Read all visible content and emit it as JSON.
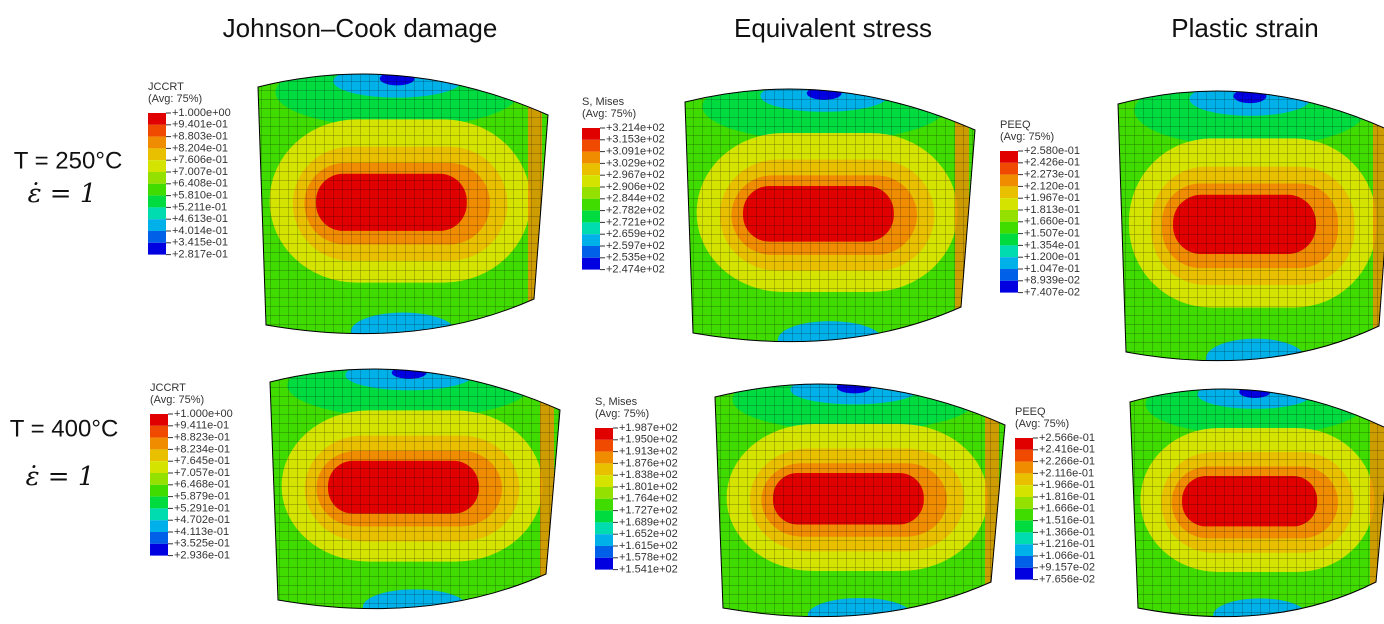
{
  "titles": [
    "Johnson–Cook damage",
    "Equivalent stress",
    "Plastic strain"
  ],
  "rows": [
    {
      "temperature": "T = 250°C",
      "strain_rate": "ε̇ = 1"
    },
    {
      "temperature": "T = 400°C",
      "strain_rate": "ε̇ = 1"
    }
  ],
  "palette": [
    "#e00000",
    "#f04a00",
    "#f08c00",
    "#e8c000",
    "#d4e400",
    "#94e000",
    "#40dc00",
    "#00dc40",
    "#00dcb0",
    "#00b0e8",
    "#0060e8",
    "#0000e0"
  ],
  "legends": [
    {
      "variable": "JCCRT",
      "average": "(Avg: 75%)",
      "values": [
        "+1.000e+00",
        "+9.401e-01",
        "+8.803e-01",
        "+8.204e-01",
        "+7.606e-01",
        "+7.007e-01",
        "+6.408e-01",
        "+5.810e-01",
        "+5.211e-01",
        "+4.613e-01",
        "+4.014e-01",
        "+3.415e-01",
        "+2.817e-01"
      ]
    },
    {
      "variable": "S, Mises",
      "average": "(Avg: 75%)",
      "values": [
        "+3.214e+02",
        "+3.153e+02",
        "+3.091e+02",
        "+3.029e+02",
        "+2.967e+02",
        "+2.906e+02",
        "+2.844e+02",
        "+2.782e+02",
        "+2.721e+02",
        "+2.659e+02",
        "+2.597e+02",
        "+2.535e+02",
        "+2.474e+02"
      ]
    },
    {
      "variable": "PEEQ",
      "average": "(Avg: 75%)",
      "values": [
        "+2.580e-01",
        "+2.426e-01",
        "+2.273e-01",
        "+2.120e-01",
        "+1.967e-01",
        "+1.813e-01",
        "+1.660e-01",
        "+1.507e-01",
        "+1.354e-01",
        "+1.200e-01",
        "+1.047e-01",
        "+8.939e-02",
        "+7.407e-02"
      ]
    },
    {
      "variable": "JCCRT",
      "average": "(Avg: 75%)",
      "values": [
        "+1.000e+00",
        "+9.411e-01",
        "+8.823e-01",
        "+8.234e-01",
        "+7.645e-01",
        "+7.057e-01",
        "+6.468e-01",
        "+5.879e-01",
        "+5.291e-01",
        "+4.702e-01",
        "+4.113e-01",
        "+3.525e-01",
        "+2.936e-01"
      ]
    },
    {
      "variable": "S, Mises",
      "average": "(Avg: 75%)",
      "values": [
        "+1.987e+02",
        "+1.950e+02",
        "+1.913e+02",
        "+1.876e+02",
        "+1.838e+02",
        "+1.801e+02",
        "+1.764e+02",
        "+1.727e+02",
        "+1.689e+02",
        "+1.652e+02",
        "+1.615e+02",
        "+1.578e+02",
        "+1.541e+02"
      ]
    },
    {
      "variable": "PEEQ",
      "average": "(Avg: 75%)",
      "values": [
        "+2.566e-01",
        "+2.416e-01",
        "+2.266e-01",
        "+2.116e-01",
        "+1.966e-01",
        "+1.816e-01",
        "+1.666e-01",
        "+1.516e-01",
        "+1.366e-01",
        "+1.216e-01",
        "+1.066e-01",
        "+9.157e-02",
        "+7.656e-02"
      ]
    }
  ]
}
